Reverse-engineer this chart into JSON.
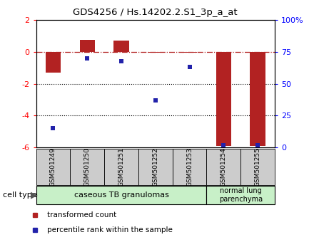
{
  "title": "GDS4256 / Hs.14202.2.S1_3p_a_at",
  "samples": [
    "GSM501249",
    "GSM501250",
    "GSM501251",
    "GSM501252",
    "GSM501253",
    "GSM501254",
    "GSM501255"
  ],
  "red_values": [
    -1.3,
    0.75,
    0.7,
    -0.05,
    -0.05,
    -5.9,
    -5.9
  ],
  "blue_percentiles": [
    15,
    70,
    68,
    37,
    63,
    2,
    2
  ],
  "ylim_left": [
    -6,
    2
  ],
  "ylim_right": [
    0,
    100
  ],
  "yticks_left": [
    2,
    0,
    -2,
    -4,
    -6
  ],
  "yticks_right": [
    100,
    75,
    50,
    25,
    0
  ],
  "ytick_labels_right": [
    "100%",
    "75",
    "50",
    "25",
    "0"
  ],
  "group1_indices": [
    0,
    1,
    2,
    3,
    4
  ],
  "group2_indices": [
    5,
    6
  ],
  "group1_label": "caseous TB granulomas",
  "group2_label": "normal lung\nparenchyma",
  "cell_type_label": "cell type",
  "legend_red": "transformed count",
  "legend_blue": "percentile rank within the sample",
  "bar_color_red": "#b22222",
  "bar_color_blue": "#2222aa",
  "group1_bg": "#c8f0c8",
  "group2_bg": "#c8f0c8",
  "sample_bg": "#cccccc"
}
